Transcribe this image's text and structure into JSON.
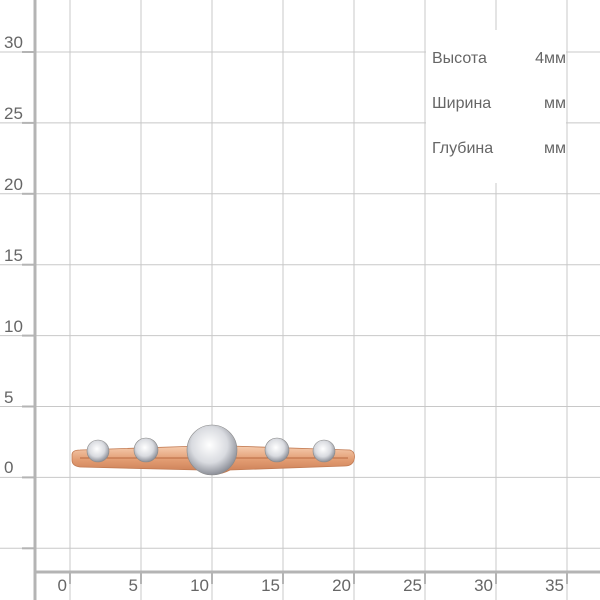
{
  "y_axis": {
    "ticks": [
      "30",
      "25",
      "20",
      "15",
      "10",
      "5",
      "0"
    ]
  },
  "x_axis": {
    "ticks": [
      "0",
      "5",
      "10",
      "15",
      "20",
      "25",
      "30",
      "35"
    ]
  },
  "specs": [
    {
      "label": "Высота",
      "value": "4мм"
    },
    {
      "label": "Ширина",
      "value": "мм"
    },
    {
      "label": "Глубина",
      "value": "мм"
    }
  ],
  "colors": {
    "grid": "#c8c8c8",
    "axis": "#b4b4b4",
    "ring_metal": "#e8a77f",
    "text": "#666666"
  },
  "product": {
    "type": "ring",
    "stones": 5
  }
}
